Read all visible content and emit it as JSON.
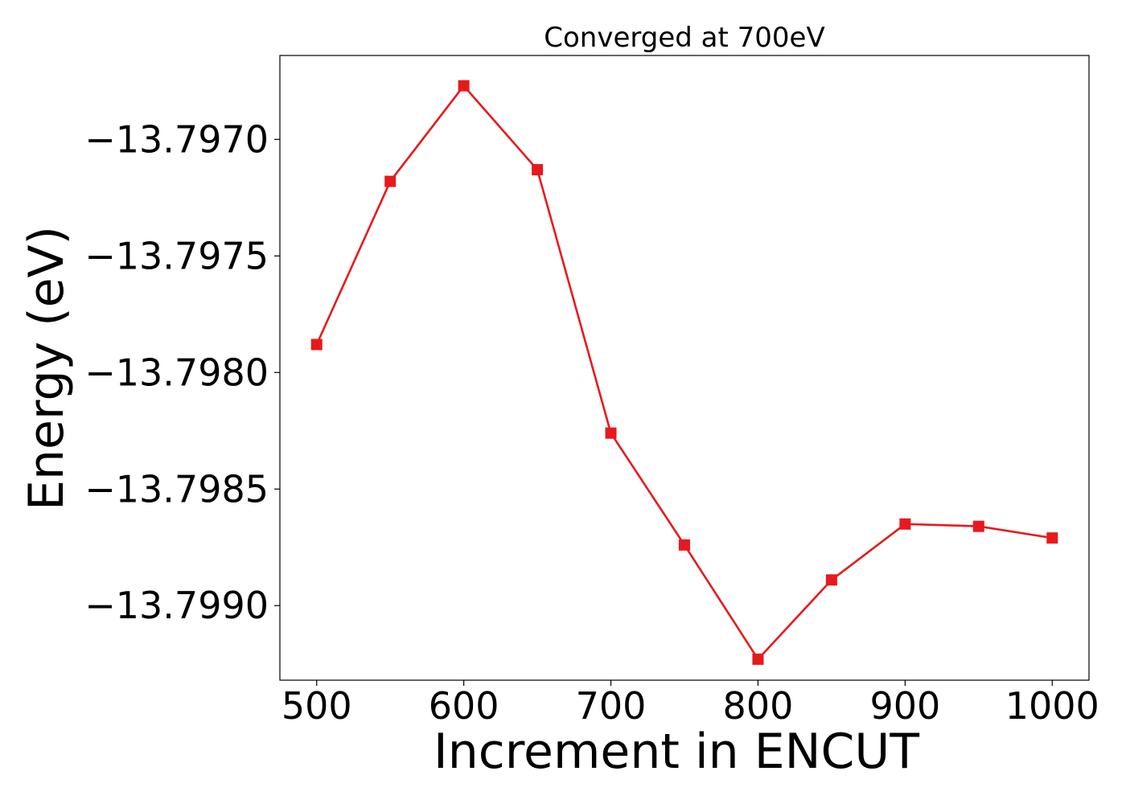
{
  "chart_data": {
    "type": "line",
    "title": "Converged at 700eV",
    "xlabel": "Increment in ENCUT",
    "ylabel": "Energy (eV)",
    "x": [
      500,
      550,
      600,
      650,
      700,
      750,
      800,
      850,
      900,
      950,
      1000
    ],
    "series": [
      {
        "name": "",
        "values": [
          -13.79788,
          -13.79718,
          -13.79677,
          -13.79713,
          -13.79826,
          -13.79874,
          -13.79923,
          -13.79889,
          -13.79865,
          -13.79866,
          -13.79871
        ],
        "color": "#e8191d",
        "marker": "square"
      }
    ],
    "xticks": [
      500,
      600,
      700,
      800,
      900,
      1000
    ],
    "xtick_labels": [
      "500",
      "600",
      "700",
      "800",
      "900",
      "1000"
    ],
    "yticks": [
      -13.797,
      -13.7975,
      -13.798,
      -13.7985,
      -13.799
    ],
    "ytick_labels": [
      "−13.7970",
      "−13.7975",
      "−13.7980",
      "−13.7985",
      "−13.7990"
    ],
    "xlim": [
      475,
      1025
    ],
    "ylim": [
      -13.79932,
      -13.79664
    ],
    "grid": false,
    "legend": "none"
  }
}
